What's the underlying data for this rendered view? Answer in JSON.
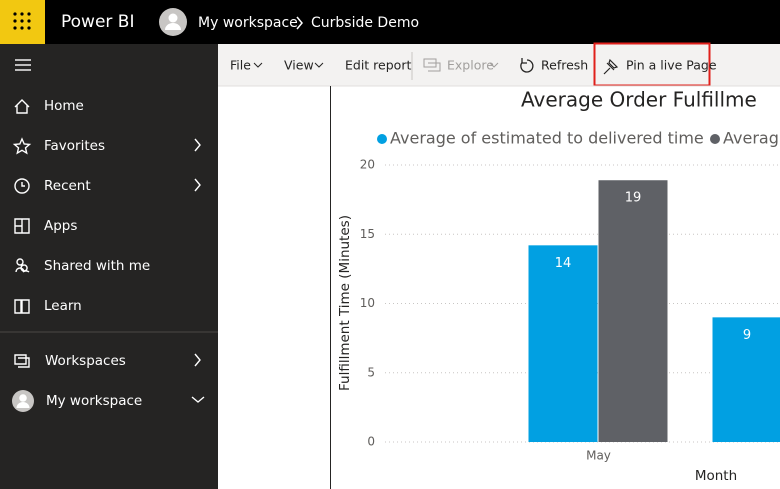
{
  "app": {
    "name": "Power BI"
  },
  "breadcrumb": {
    "workspace": "My workspace",
    "report": "Curbside Demo"
  },
  "nav": {
    "items": [
      "Home",
      "Favorites",
      "Recent",
      "Apps",
      "Shared with me",
      "Learn"
    ],
    "workspace_items": [
      "Workspaces",
      "My workspace"
    ]
  },
  "toolbar": {
    "items": [
      "File",
      "View",
      "Edit report",
      "Explore",
      "Refresh",
      "Pin a live Page"
    ]
  },
  "chart_data": {
    "type": "bar",
    "title": "Average Order Fulfillme",
    "y_label": "Fulfillment Time (Minutes)",
    "x_label": "Month",
    "categories": [
      "May",
      null
    ],
    "series": [
      {
        "name": "Average of estimated to delivered time",
        "color": "#01a0e2",
        "values": [
          14.2,
          9
        ],
        "value_labels": [
          "14",
          "9"
        ]
      },
      {
        "name": "Averag",
        "color": "#5f6166",
        "values": [
          18.9,
          null
        ],
        "value_labels": [
          "19",
          null
        ]
      }
    ],
    "ylim": [
      0,
      20
    ],
    "yticks": [
      0,
      5,
      10,
      15,
      20
    ],
    "grid": true
  }
}
